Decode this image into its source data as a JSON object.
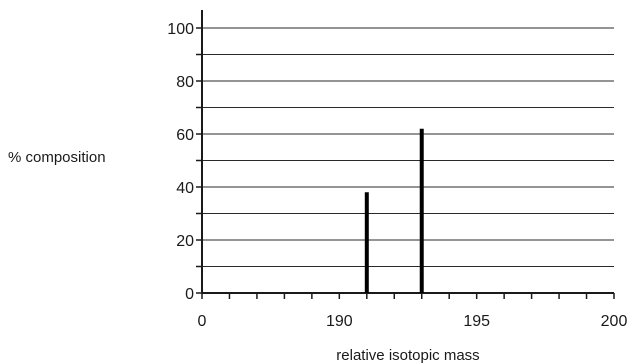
{
  "chart_data": {
    "type": "bar",
    "title": "",
    "xlabel": "relative isotopic mass",
    "ylabel": "% composition",
    "x_tick_labels": [
      "0",
      "190",
      "195",
      "200"
    ],
    "y_tick_labels": [
      "0",
      "20",
      "40",
      "60",
      "80",
      "100"
    ],
    "x_axis_break": true,
    "x_visible_range": [
      185,
      200
    ],
    "ylim": [
      0,
      105
    ],
    "grid": "horizontal",
    "series": [
      {
        "x": [
          191,
          193
        ],
        "values": [
          38,
          62
        ]
      }
    ]
  }
}
